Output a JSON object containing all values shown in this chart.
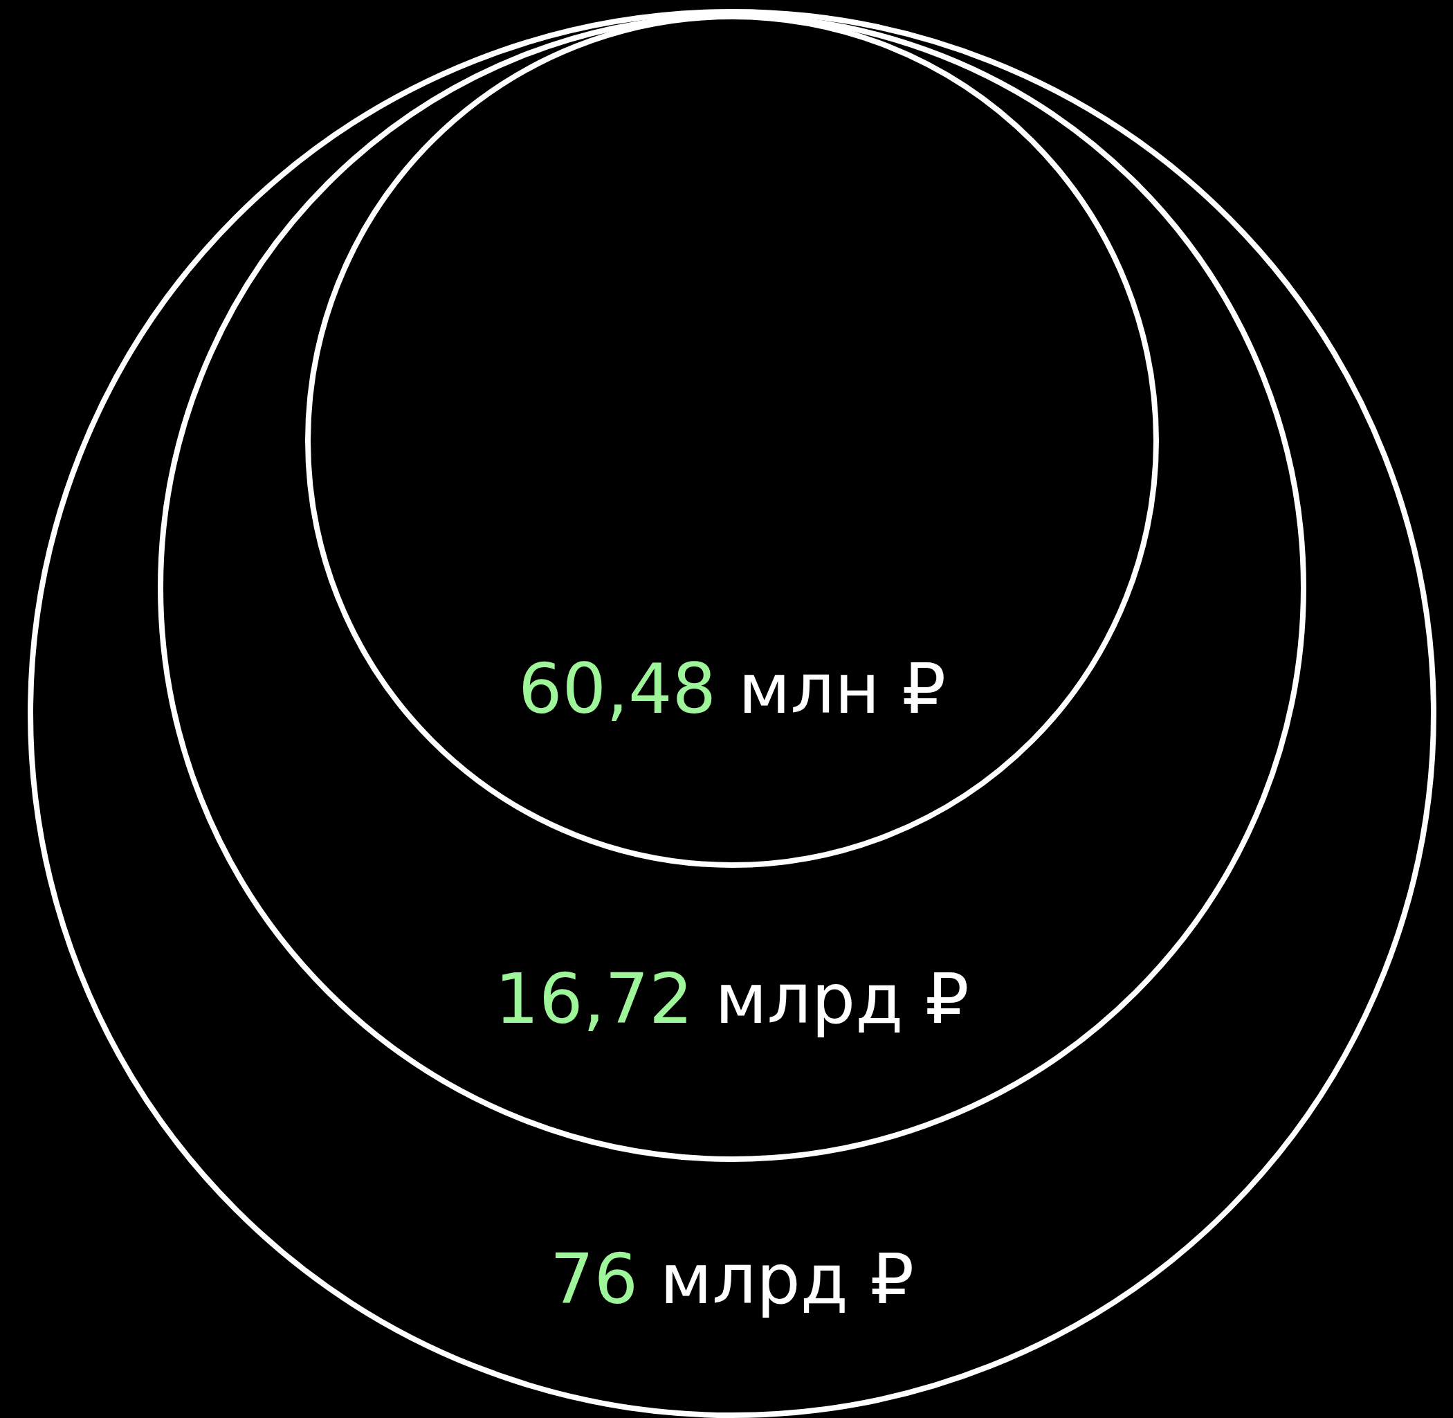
{
  "chart_data": {
    "type": "other",
    "categories": [
      null,
      null,
      null
    ],
    "values": [
      60.48,
      16.72,
      76
    ],
    "value_labels": [
      "60,48 млн ₽",
      "16,72 млрд ₽",
      "76 млрд ₽"
    ],
    "color": "#ffffff"
  }
}
